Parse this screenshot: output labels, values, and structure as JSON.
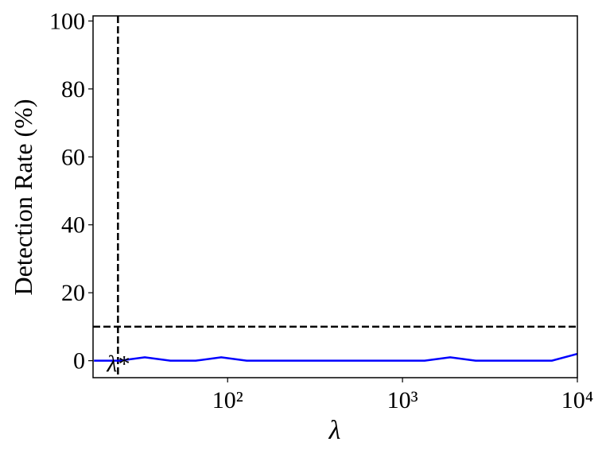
{
  "chart_data": {
    "type": "line",
    "x_label": "λ",
    "y_label": "Detection Rate (%)",
    "x": [
      17.2,
      24.1,
      33.6,
      47.0,
      65.7,
      91.9,
      128.5,
      179.6,
      251,
      351,
      490,
      686,
      958,
      1340,
      1873,
      2618,
      3660,
      5117,
      7153,
      10000
    ],
    "series": [
      {
        "color": "#0000ff",
        "values": [
          0,
          0,
          1,
          0,
          0,
          1,
          0,
          0,
          0,
          0,
          0,
          0,
          0,
          0,
          1,
          0,
          0,
          0,
          0,
          2
        ]
      }
    ],
    "x_log": true,
    "xlim": [
      17,
      10000
    ],
    "ylim": [
      -5,
      101.5
    ],
    "xticks": [
      {
        "value": 100,
        "label": "10²"
      },
      {
        "value": 1000,
        "label": "10³"
      },
      {
        "value": 10000,
        "label": "10⁴"
      }
    ],
    "yticks": [
      0,
      20,
      40,
      60,
      80,
      100
    ],
    "vline": 23.6,
    "hline": 10,
    "annotation": "λ*"
  }
}
